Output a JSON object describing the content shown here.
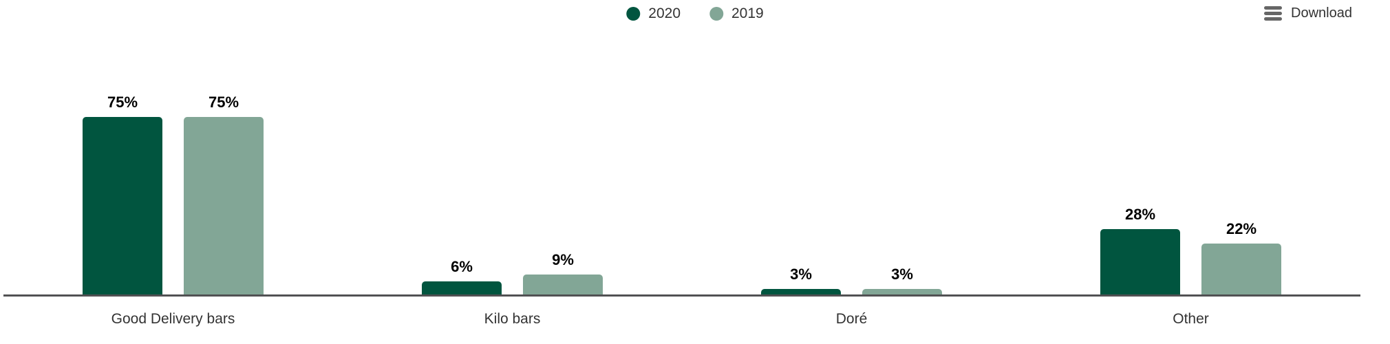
{
  "legend": {
    "items": [
      {
        "label": "2020",
        "color": "#01553f"
      },
      {
        "label": "2019",
        "color": "#82a696"
      }
    ]
  },
  "toolbar": {
    "download_label": "Download",
    "icon": "hamburger-menu-icon",
    "icon_color": "#666666"
  },
  "colors": {
    "series_2020": "#01553f",
    "series_2019": "#82a696",
    "axis_line": "#515153",
    "category_label_text": "#333333",
    "data_label_text": "#000000",
    "background": "#ffffff"
  },
  "chart_data": {
    "type": "bar",
    "title": "",
    "xlabel": "",
    "ylabel": "",
    "unit": "%",
    "categories": [
      "Good Delivery bars",
      "Kilo bars",
      "Doré",
      "Other"
    ],
    "series": [
      {
        "name": "2020",
        "color": "#01553f",
        "values": [
          75,
          6,
          3,
          28
        ]
      },
      {
        "name": "2019",
        "color": "#82a696",
        "values": [
          75,
          9,
          3,
          22
        ]
      }
    ],
    "data_labels_visible": true,
    "data_label_format": "{value}%",
    "y_axis_visible": false,
    "x_axis_line": true,
    "grid": false,
    "legend_position": "top-center"
  }
}
